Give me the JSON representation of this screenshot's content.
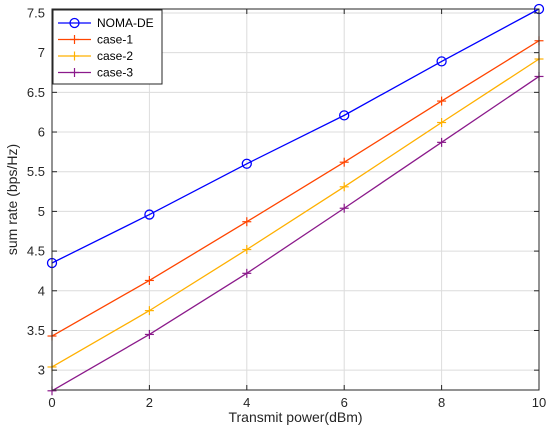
{
  "chart_data": {
    "type": "line",
    "title": "",
    "xlabel": "Transmit power(dBm)",
    "ylabel": "sum rate (bps/Hz)",
    "x": [
      0,
      2,
      4,
      6,
      8,
      10
    ],
    "xlim": [
      0,
      10
    ],
    "ylim": [
      2.75,
      7.55
    ],
    "xticks": [
      "0",
      "2",
      "4",
      "6",
      "8",
      "10"
    ],
    "yticks": [
      "3",
      "3.5",
      "4",
      "4.5",
      "5",
      "5.5",
      "6",
      "6.5",
      "7",
      "7.5"
    ],
    "grid": true,
    "legend_position": "top-left",
    "series": [
      {
        "name": "NOMA-DE",
        "color": "#0000ff",
        "marker": "circle",
        "values": [
          4.35,
          4.96,
          5.6,
          6.21,
          6.89,
          7.55
        ]
      },
      {
        "name": "case-1",
        "color": "#ff4500",
        "marker": "plus",
        "values": [
          3.43,
          4.13,
          4.87,
          5.62,
          6.39,
          7.15
        ]
      },
      {
        "name": "case-2",
        "color": "#ffb000",
        "marker": "plus",
        "values": [
          3.04,
          3.75,
          4.52,
          5.31,
          6.12,
          6.92
        ]
      },
      {
        "name": "case-3",
        "color": "#8b1a8b",
        "marker": "plus",
        "values": [
          2.74,
          3.45,
          4.22,
          5.04,
          5.87,
          6.7
        ]
      }
    ]
  }
}
